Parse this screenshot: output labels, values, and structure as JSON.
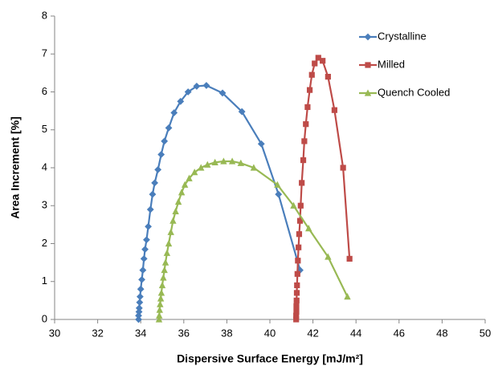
{
  "chart_data": {
    "type": "scatter",
    "xlabel": "Dispersive Surface Energy [mJ/m²]",
    "ylabel": "Area Increment [%]",
    "xlim": [
      30,
      50
    ],
    "xticks": [
      30,
      32,
      34,
      36,
      38,
      40,
      42,
      44,
      46,
      48,
      50
    ],
    "ylim": [
      0,
      8
    ],
    "yticks": [
      0,
      1,
      2,
      3,
      4,
      5,
      6,
      7,
      8
    ],
    "legend": "upper right",
    "series": [
      {
        "name": "Crystalline",
        "color": "#4a7ebb",
        "marker": "diamond",
        "x": [
          33.9,
          33.9,
          33.92,
          33.93,
          33.95,
          33.97,
          34.0,
          34.05,
          34.1,
          34.15,
          34.2,
          34.27,
          34.35,
          34.45,
          34.55,
          34.65,
          34.8,
          34.95,
          35.1,
          35.3,
          35.55,
          35.85,
          36.2,
          36.6,
          37.05,
          37.8,
          38.7,
          39.6,
          40.4,
          41.4
        ],
        "values": [
          0,
          0.1,
          0.2,
          0.3,
          0.45,
          0.6,
          0.8,
          1.05,
          1.3,
          1.6,
          1.85,
          2.1,
          2.45,
          2.9,
          3.3,
          3.6,
          3.95,
          4.35,
          4.7,
          5.05,
          5.45,
          5.75,
          6.0,
          6.15,
          6.17,
          5.97,
          5.48,
          4.63,
          3.3,
          1.3
        ]
      },
      {
        "name": "Milled",
        "color": "#be4b48",
        "marker": "square",
        "x": [
          41.22,
          41.22,
          41.23,
          41.23,
          41.24,
          41.25,
          41.26,
          41.28,
          41.3,
          41.33,
          41.36,
          41.4,
          41.43,
          41.48,
          41.55,
          41.6,
          41.67,
          41.75,
          41.85,
          41.95,
          42.08,
          42.25,
          42.45,
          42.7,
          43.0,
          43.4,
          43.7
        ],
        "values": [
          0,
          0.1,
          0.2,
          0.35,
          0.5,
          0.7,
          0.9,
          1.2,
          1.55,
          1.9,
          2.25,
          2.6,
          3.0,
          3.6,
          4.2,
          4.7,
          5.15,
          5.6,
          6.05,
          6.45,
          6.75,
          6.9,
          6.82,
          6.4,
          5.52,
          4.0,
          1.6
        ]
      },
      {
        "name": "Quench Cooled",
        "color": "#98b954",
        "marker": "triangle",
        "x": [
          34.85,
          34.86,
          34.88,
          34.9,
          34.93,
          34.96,
          35.0,
          35.05,
          35.1,
          35.15,
          35.22,
          35.3,
          35.4,
          35.5,
          35.62,
          35.75,
          35.9,
          36.05,
          36.25,
          36.5,
          36.8,
          37.1,
          37.45,
          37.85,
          38.25,
          38.65,
          39.25,
          40.35,
          41.1,
          41.8,
          42.7,
          43.6
        ],
        "values": [
          0,
          0.1,
          0.25,
          0.4,
          0.55,
          0.7,
          0.9,
          1.1,
          1.3,
          1.5,
          1.75,
          2.0,
          2.3,
          2.6,
          2.85,
          3.1,
          3.35,
          3.55,
          3.72,
          3.88,
          4.0,
          4.08,
          4.14,
          4.17,
          4.17,
          4.12,
          4.0,
          3.55,
          3.0,
          2.4,
          1.65,
          0.6
        ]
      }
    ]
  }
}
